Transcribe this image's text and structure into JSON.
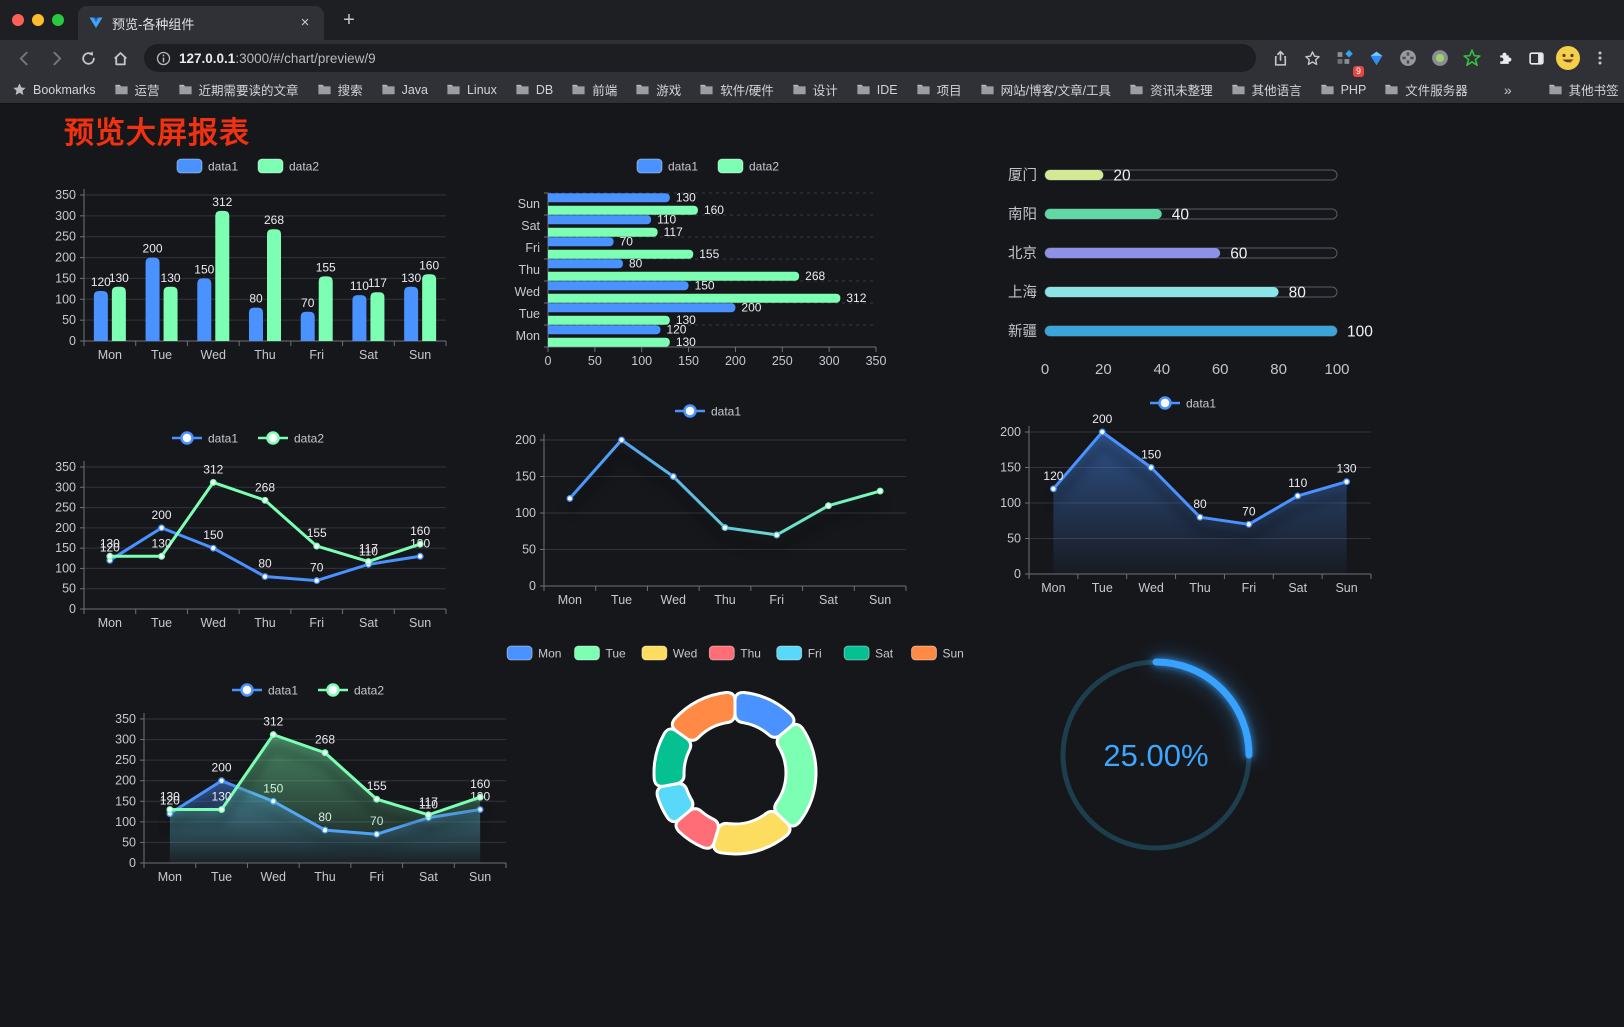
{
  "browser": {
    "window_controls": [
      "close",
      "minimize",
      "zoom"
    ],
    "tab": {
      "title": "预览-各种组件"
    },
    "new_tab_glyph": "+",
    "close_tab_glyph": "×",
    "address": {
      "host": "127.0.0.1",
      "rest": ":3000/#/chart/preview/9"
    },
    "extensions_badge": "9",
    "menu_glyph": "⋮",
    "bookmarks_bar": {
      "star_label": "Bookmarks",
      "items": [
        "运营",
        "近期需要读的文章",
        "搜索",
        "Java",
        "Linux",
        "DB",
        "前端",
        "游戏",
        "软件/硬件",
        "设计",
        "IDE",
        "项目",
        "网站/博客/文章/工具",
        "资讯未整理",
        "其他语言",
        "PHP",
        "文件服务器"
      ],
      "overflow": "»",
      "other_bookmarks": "其他书签"
    }
  },
  "page": {
    "title": "预览大屏报表",
    "title_color": "#f1310f",
    "background": "#16171b"
  },
  "chart_data": [
    {
      "id": "grouped-bar",
      "type": "bar",
      "categories": [
        "Mon",
        "Tue",
        "Wed",
        "Thu",
        "Fri",
        "Sat",
        "Sun"
      ],
      "series": [
        {
          "name": "data1",
          "color": "#4992ff",
          "values": [
            120,
            200,
            150,
            80,
            70,
            110,
            130
          ]
        },
        {
          "name": "data2",
          "color": "#7cffb2",
          "values": [
            130,
            130,
            312,
            268,
            155,
            117,
            160
          ]
        }
      ],
      "ylim": [
        0,
        350
      ],
      "ystep": 50,
      "legend_position": "top",
      "grid": true
    },
    {
      "id": "horizontal-bar",
      "type": "bar",
      "orientation": "horizontal",
      "categories_top_to_bottom": [
        "Sun",
        "Sat",
        "Fri",
        "Thu",
        "Wed",
        "Tue",
        "Mon"
      ],
      "series": [
        {
          "name": "data1",
          "color": "#4992ff",
          "values_top_to_bottom": [
            130,
            110,
            70,
            80,
            150,
            200,
            120
          ]
        },
        {
          "name": "data2",
          "color": "#7cffb2",
          "values_top_to_bottom": [
            160,
            117,
            155,
            268,
            312,
            130,
            130
          ]
        }
      ],
      "xlim": [
        0,
        350
      ],
      "xstep": 50,
      "legend_position": "top"
    },
    {
      "id": "progress-pills",
      "type": "bar",
      "variant": "progress",
      "items": [
        {
          "label": "厦门",
          "value": 20,
          "color": "#d3e994"
        },
        {
          "label": "南阳",
          "value": 40,
          "color": "#5fd8a5"
        },
        {
          "label": "北京",
          "value": 60,
          "color": "#8d91e8"
        },
        {
          "label": "上海",
          "value": 80,
          "color": "#8ae5e6"
        },
        {
          "label": "新疆",
          "value": 100,
          "color": "#3aa4db"
        }
      ],
      "xlim": [
        0,
        100
      ],
      "xticks": [
        0,
        20,
        40,
        60,
        80,
        100
      ]
    },
    {
      "id": "dual-line",
      "type": "line",
      "categories": [
        "Mon",
        "Tue",
        "Wed",
        "Thu",
        "Fri",
        "Sat",
        "Sun"
      ],
      "series": [
        {
          "name": "data1",
          "color": "#4992ff",
          "values": [
            120,
            200,
            150,
            80,
            70,
            110,
            130
          ]
        },
        {
          "name": "data2",
          "color": "#7cffb2",
          "values": [
            130,
            130,
            312,
            268,
            155,
            117,
            160
          ]
        }
      ],
      "ylim": [
        0,
        350
      ],
      "ystep": 50,
      "show_labels": true,
      "legend_position": "top"
    },
    {
      "id": "gradient-line",
      "type": "line",
      "variant": "gradient-stroke",
      "categories": [
        "Mon",
        "Tue",
        "Wed",
        "Thu",
        "Fri",
        "Sat",
        "Sun"
      ],
      "series": [
        {
          "name": "data1",
          "gradient": [
            "#4992ff",
            "#7cffb2"
          ],
          "values": [
            120,
            200,
            150,
            80,
            70,
            110,
            130
          ]
        }
      ],
      "ylim": [
        0,
        200
      ],
      "ystep": 50,
      "show_labels": false,
      "legend_position": "top"
    },
    {
      "id": "area-line",
      "type": "area",
      "categories": [
        "Mon",
        "Tue",
        "Wed",
        "Thu",
        "Fri",
        "Sat",
        "Sun"
      ],
      "series": [
        {
          "name": "data1",
          "color": "#4992ff",
          "values": [
            120,
            200,
            150,
            80,
            70,
            110,
            130
          ]
        }
      ],
      "ylim": [
        0,
        200
      ],
      "ystep": 50,
      "show_labels": true,
      "legend_position": "top"
    },
    {
      "id": "dual-area-line",
      "type": "area",
      "categories": [
        "Mon",
        "Tue",
        "Wed",
        "Thu",
        "Fri",
        "Sat",
        "Sun"
      ],
      "series": [
        {
          "name": "data1",
          "color": "#4992ff",
          "values": [
            120,
            200,
            150,
            80,
            70,
            110,
            130
          ]
        },
        {
          "name": "data2",
          "color": "#7cffb2",
          "values": [
            130,
            130,
            312,
            268,
            155,
            117,
            160
          ]
        }
      ],
      "ylim": [
        0,
        350
      ],
      "ystep": 50,
      "show_labels": true,
      "legend_position": "top"
    },
    {
      "id": "donut-pie",
      "type": "pie",
      "categories": [
        "Mon",
        "Tue",
        "Wed",
        "Thu",
        "Fri",
        "Sat",
        "Sun"
      ],
      "values": [
        120,
        200,
        150,
        80,
        70,
        110,
        130
      ],
      "colors": [
        "#4992ff",
        "#7cffb2",
        "#fddd60",
        "#ff6e76",
        "#58d9f9",
        "#05c091",
        "#ff8a45"
      ],
      "inner_radius_ratio": 0.63,
      "border_color": "#ffffff",
      "legend_position": "top"
    },
    {
      "id": "ring-gauge",
      "type": "gauge",
      "percent": 25,
      "value_label": "25.00%",
      "color": "#37a2ff",
      "track_color": "#1d3e4c"
    }
  ]
}
